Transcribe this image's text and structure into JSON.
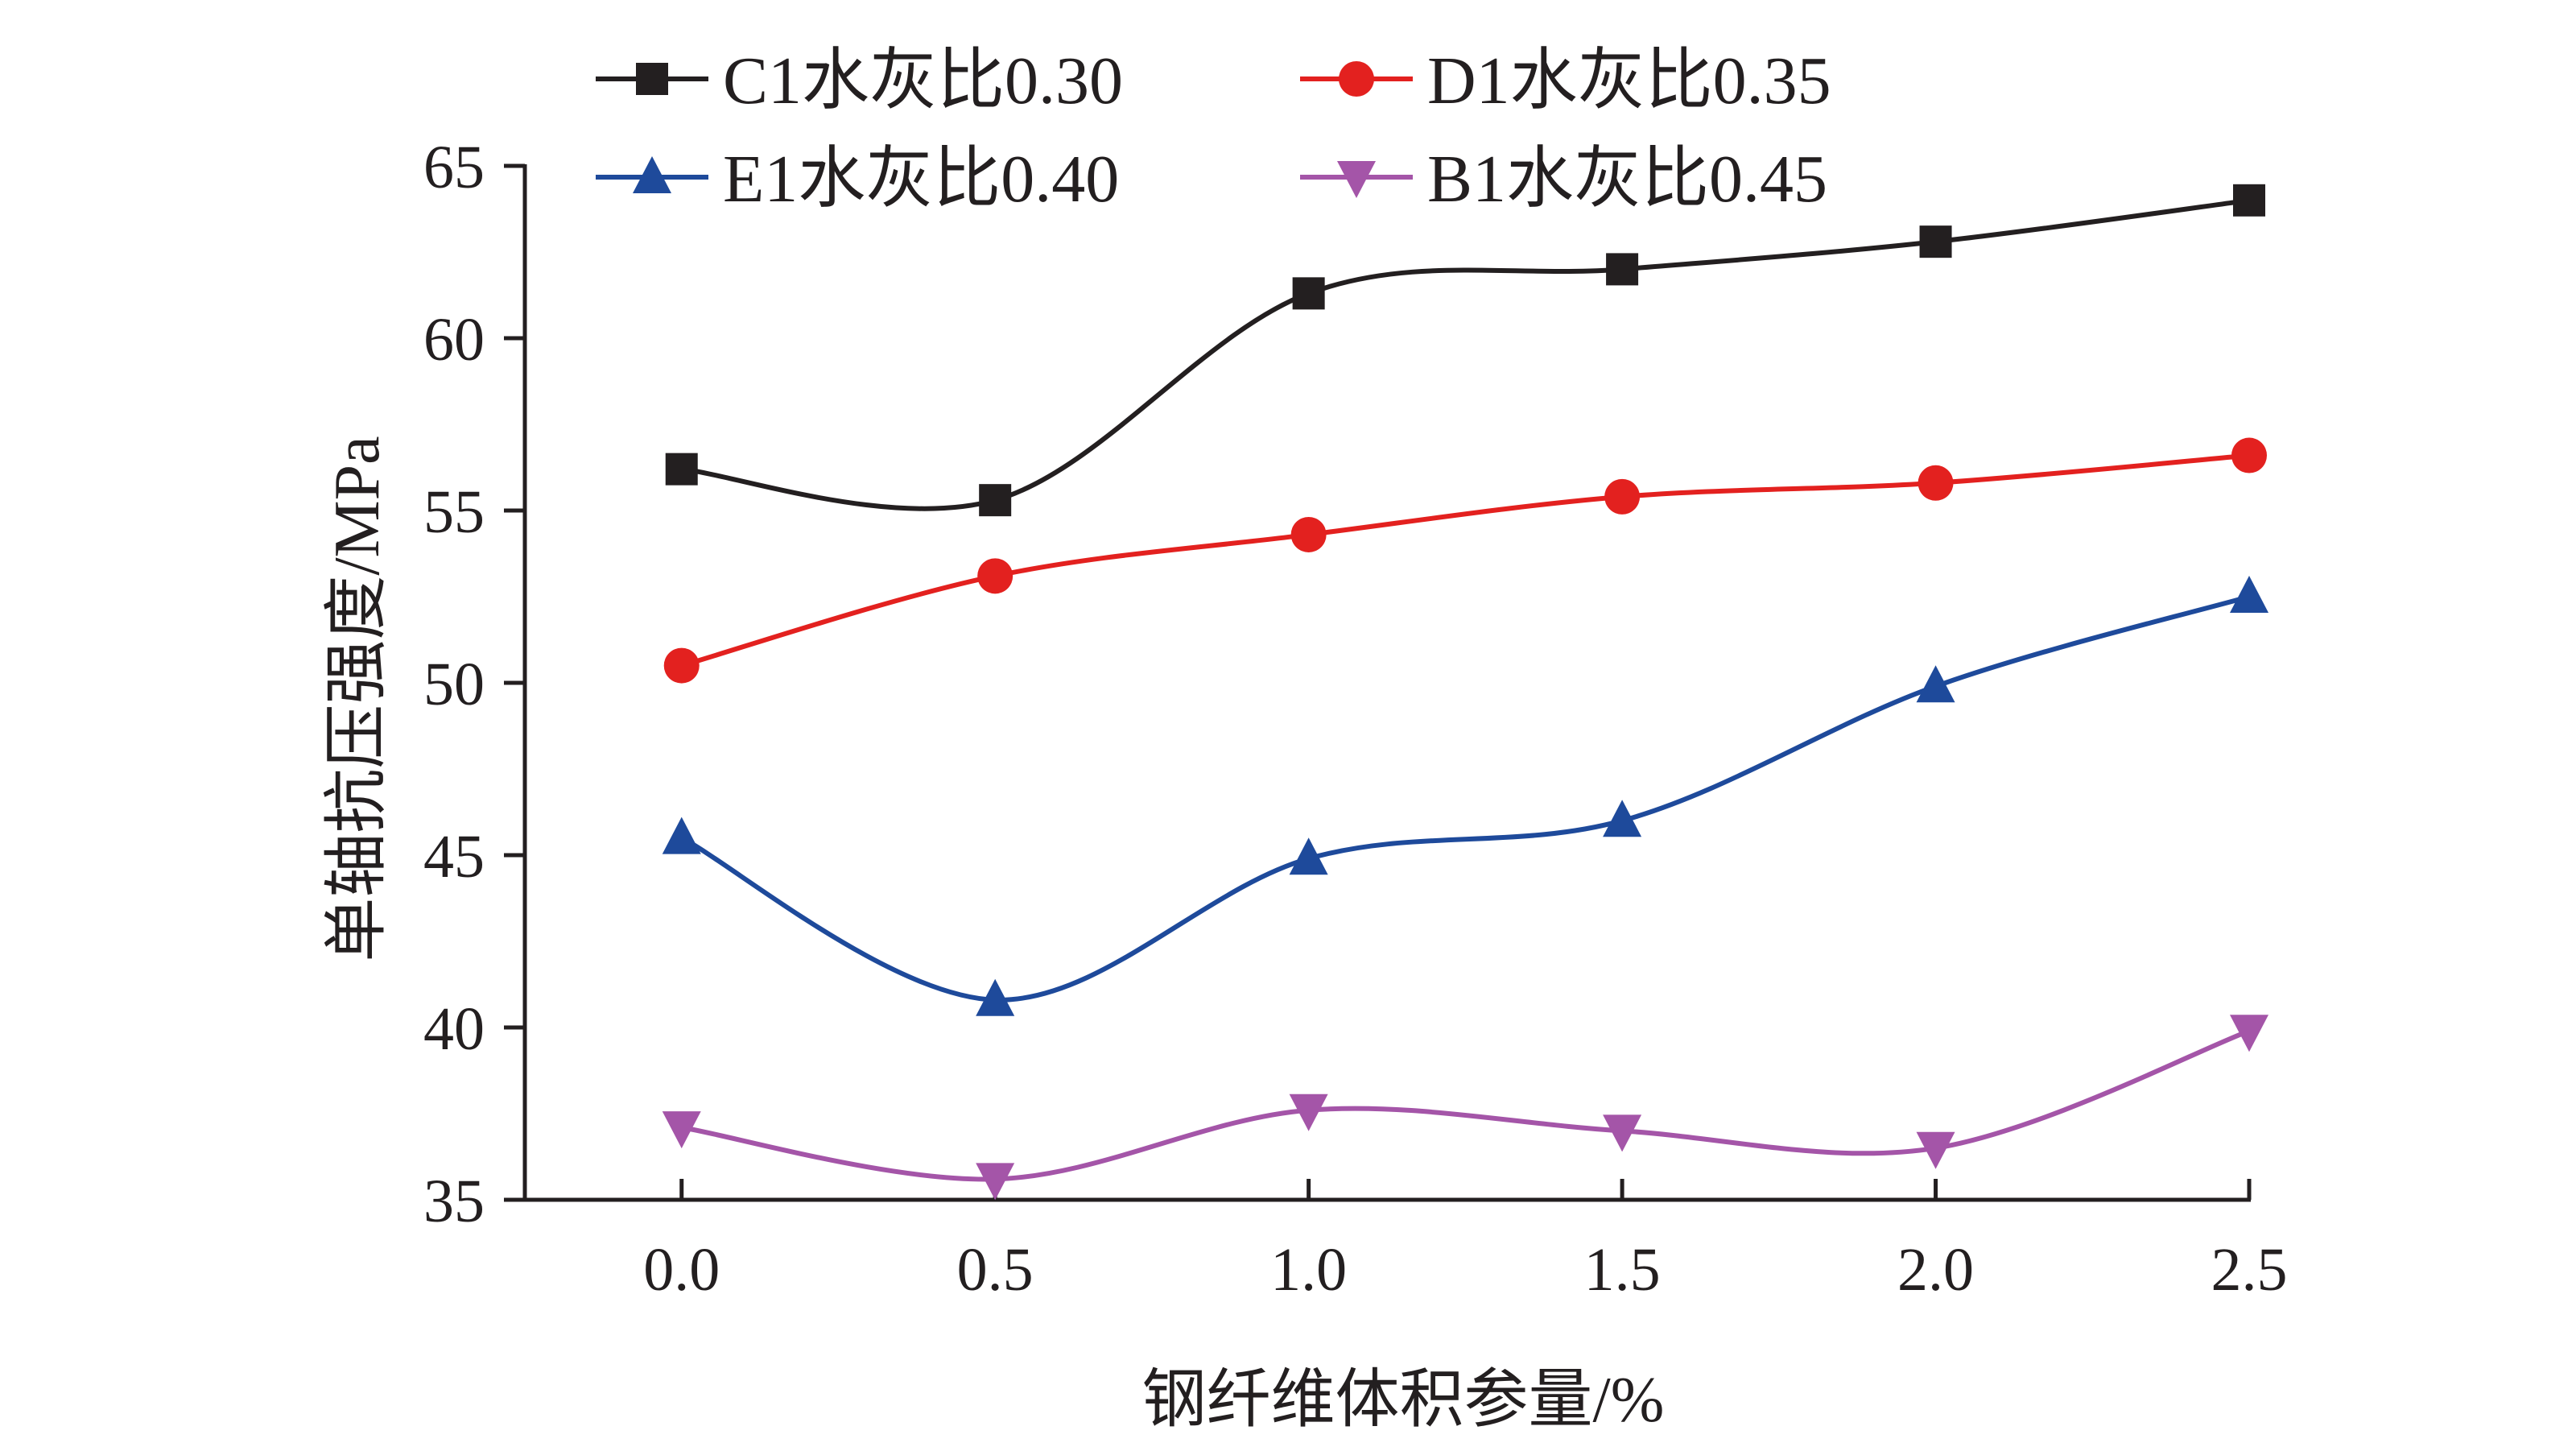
{
  "chart_data": {
    "type": "line",
    "title": "",
    "xlabel": "钢纤维体积参量/%",
    "ylabel": "单轴抗压强度/MPa",
    "x": [
      0.0,
      0.5,
      1.0,
      1.5,
      2.0,
      2.5
    ],
    "x_tick_labels": [
      "0.0",
      "0.5",
      "1.0",
      "1.5",
      "2.0",
      "2.5"
    ],
    "xlim": [
      -0.25,
      2.5
    ],
    "ylim": [
      35,
      65
    ],
    "y_ticks": [
      35,
      40,
      45,
      50,
      55,
      60,
      65
    ],
    "y_tick_labels": [
      "35",
      "40",
      "45",
      "50",
      "55",
      "60",
      "65"
    ],
    "smooth": true,
    "grid": false,
    "legend_position": "top",
    "series": [
      {
        "name": "C1水灰比0.30",
        "marker": "square",
        "color": "#231f20",
        "values": [
          56.2,
          55.3,
          61.3,
          62.0,
          62.8,
          64.0
        ]
      },
      {
        "name": "D1水灰比0.35",
        "marker": "circle",
        "color": "#e3211f",
        "values": [
          50.5,
          53.1,
          54.3,
          55.4,
          55.8,
          56.6
        ]
      },
      {
        "name": "E1水灰比0.40",
        "marker": "triangle-up",
        "color": "#1e4a9b",
        "values": [
          45.5,
          40.8,
          44.9,
          46.0,
          49.9,
          52.5
        ]
      },
      {
        "name": "B1水灰比0.45",
        "marker": "triangle-down",
        "color": "#a455a8",
        "values": [
          37.1,
          35.6,
          37.6,
          37.0,
          36.5,
          39.9
        ]
      }
    ]
  }
}
